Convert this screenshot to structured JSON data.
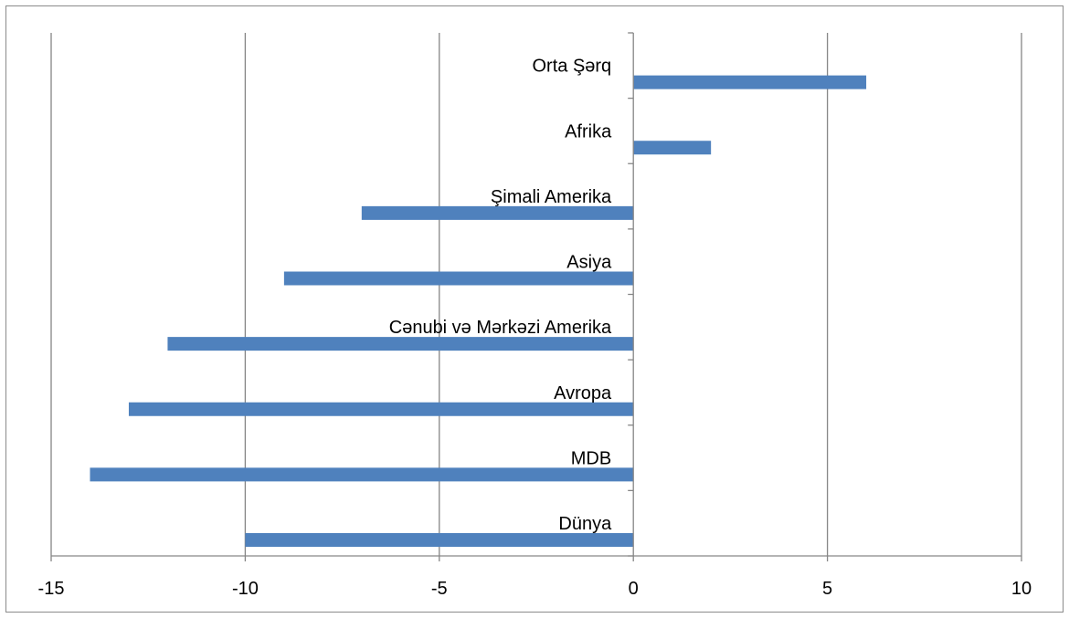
{
  "chart_data": {
    "type": "bar",
    "orientation": "horizontal",
    "categories": [
      "Dünya",
      "MDB",
      "Avropa",
      "Cənubi və Mərkəzi Amerika",
      "Asiya",
      "Şimali Amerika",
      "Afrika",
      "Orta Şərq"
    ],
    "values": [
      -10,
      -14,
      -13,
      -12,
      -9,
      -7,
      2,
      6
    ],
    "title": "",
    "xlabel": "",
    "ylabel": "",
    "xlim": [
      -15,
      10
    ],
    "x_ticks": [
      -15,
      -10,
      -5,
      0,
      5,
      10
    ],
    "x_tick_labels": [
      "-15",
      "-10",
      "-5",
      "0",
      "5",
      "10"
    ],
    "grid": "vertical",
    "legend": "none",
    "colors": {
      "bar": "#4f81bd",
      "grid": "#868686",
      "axis": "#868686"
    }
  }
}
